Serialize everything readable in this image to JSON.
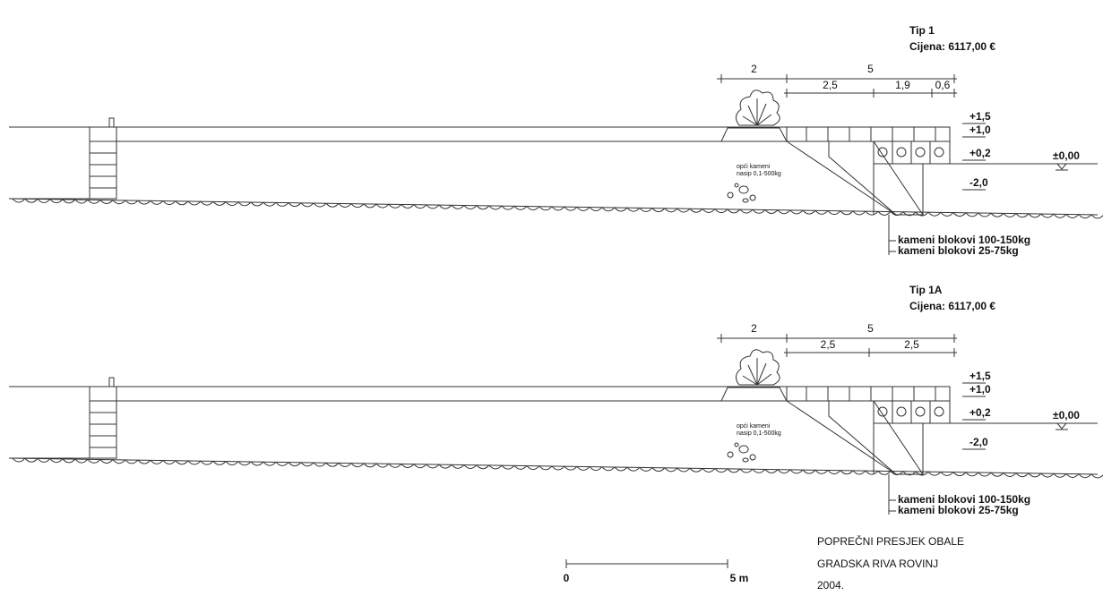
{
  "sections": [
    {
      "title": "Tip 1",
      "price": "Cijena:  6117,00 €",
      "dims": {
        "top": [
          "2",
          "5"
        ],
        "sub": [
          "2,5",
          "1,9",
          "0,6"
        ]
      },
      "levels": [
        "+1,5",
        "+1,0",
        "+0,2",
        "-2,0"
      ],
      "sea_level": "±0,00",
      "fill_note": [
        "opći kameni",
        "nasip 0,1-500kg"
      ],
      "block_labels": [
        "kameni blokovi 100-150kg",
        "kameni blokovi 25-75kg"
      ]
    },
    {
      "title": "Tip 1A",
      "price": "Cijena:  6117,00 €",
      "dims": {
        "top": [
          "2",
          "5"
        ],
        "sub": [
          "2,5",
          "2,5"
        ]
      },
      "levels": [
        "+1,5",
        "+1,0",
        "+0,2",
        "-2,0"
      ],
      "sea_level": "±0,00",
      "fill_note": [
        "opći kameni",
        "nasip 0,1-500kg"
      ],
      "block_labels": [
        "kameni blokovi 100-150kg",
        "kameni blokovi 25-75kg"
      ]
    }
  ],
  "scale": {
    "start": "0",
    "end": "5 m"
  },
  "caption": [
    "POPREČNI PRESJEK OBALE",
    "GRADSKA RIVA ROVINJ",
    "2004."
  ]
}
